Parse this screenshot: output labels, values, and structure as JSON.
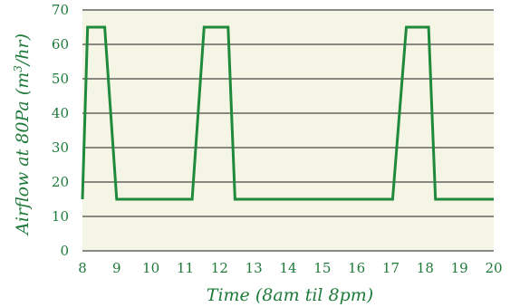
{
  "chart_data": {
    "type": "line",
    "title": "",
    "xlabel": "Time (8am til 8pm)",
    "ylabel_main": "Airflow at 80Pa (m",
    "ylabel_sup": "3",
    "ylabel_end": "/hr)",
    "xlim": [
      8,
      20
    ],
    "ylim": [
      0,
      70
    ],
    "x_ticks": [
      8,
      9,
      10,
      11,
      12,
      13,
      14,
      15,
      16,
      17,
      18,
      19,
      20
    ],
    "y_ticks": [
      0,
      10,
      20,
      30,
      40,
      50,
      60,
      70
    ],
    "grid": "horizontal",
    "colors": {
      "plot_bg": "#f5f5e6",
      "line": "#1f8a3c",
      "text": "#1f7a3a",
      "grid": "#1a1a1a"
    },
    "series": [
      {
        "x": [
          8.0,
          8.15,
          8.65,
          9.0,
          11.2,
          11.55,
          12.25,
          12.45,
          17.05,
          17.45,
          18.1,
          18.3,
          20.0
        ],
        "y": [
          15,
          65,
          65,
          15,
          15,
          65,
          65,
          15,
          15,
          65,
          65,
          15,
          15
        ]
      }
    ]
  }
}
